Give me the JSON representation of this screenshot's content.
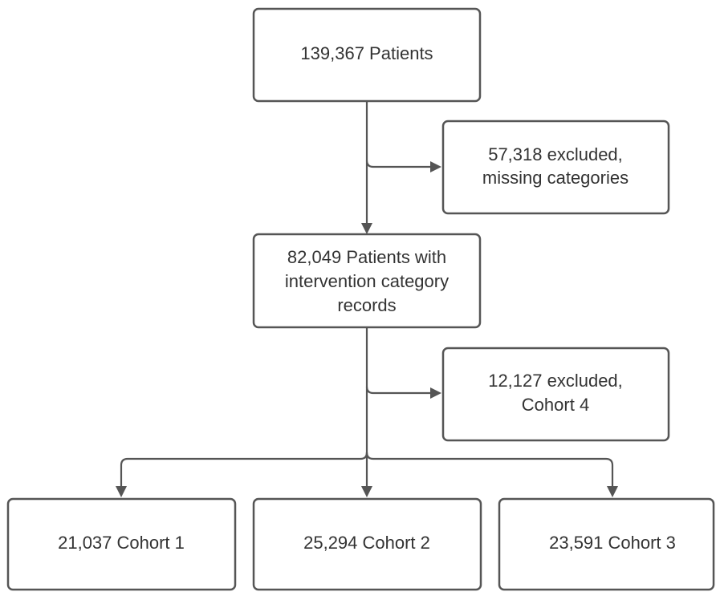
{
  "nodes": [
    {
      "lines": [
        "139,367 Patients"
      ]
    },
    {
      "lines": [
        "57,318 excluded,",
        "missing categories"
      ]
    },
    {
      "lines": [
        "82,049 Patients with",
        "intervention category",
        "records"
      ]
    },
    {
      "lines": [
        "12,127 excluded,",
        "Cohort 4"
      ]
    },
    {
      "lines": [
        "21,037 Cohort 1"
      ]
    },
    {
      "lines": [
        "25,294 Cohort 2"
      ]
    },
    {
      "lines": [
        "23,591 Cohort 3"
      ]
    }
  ]
}
